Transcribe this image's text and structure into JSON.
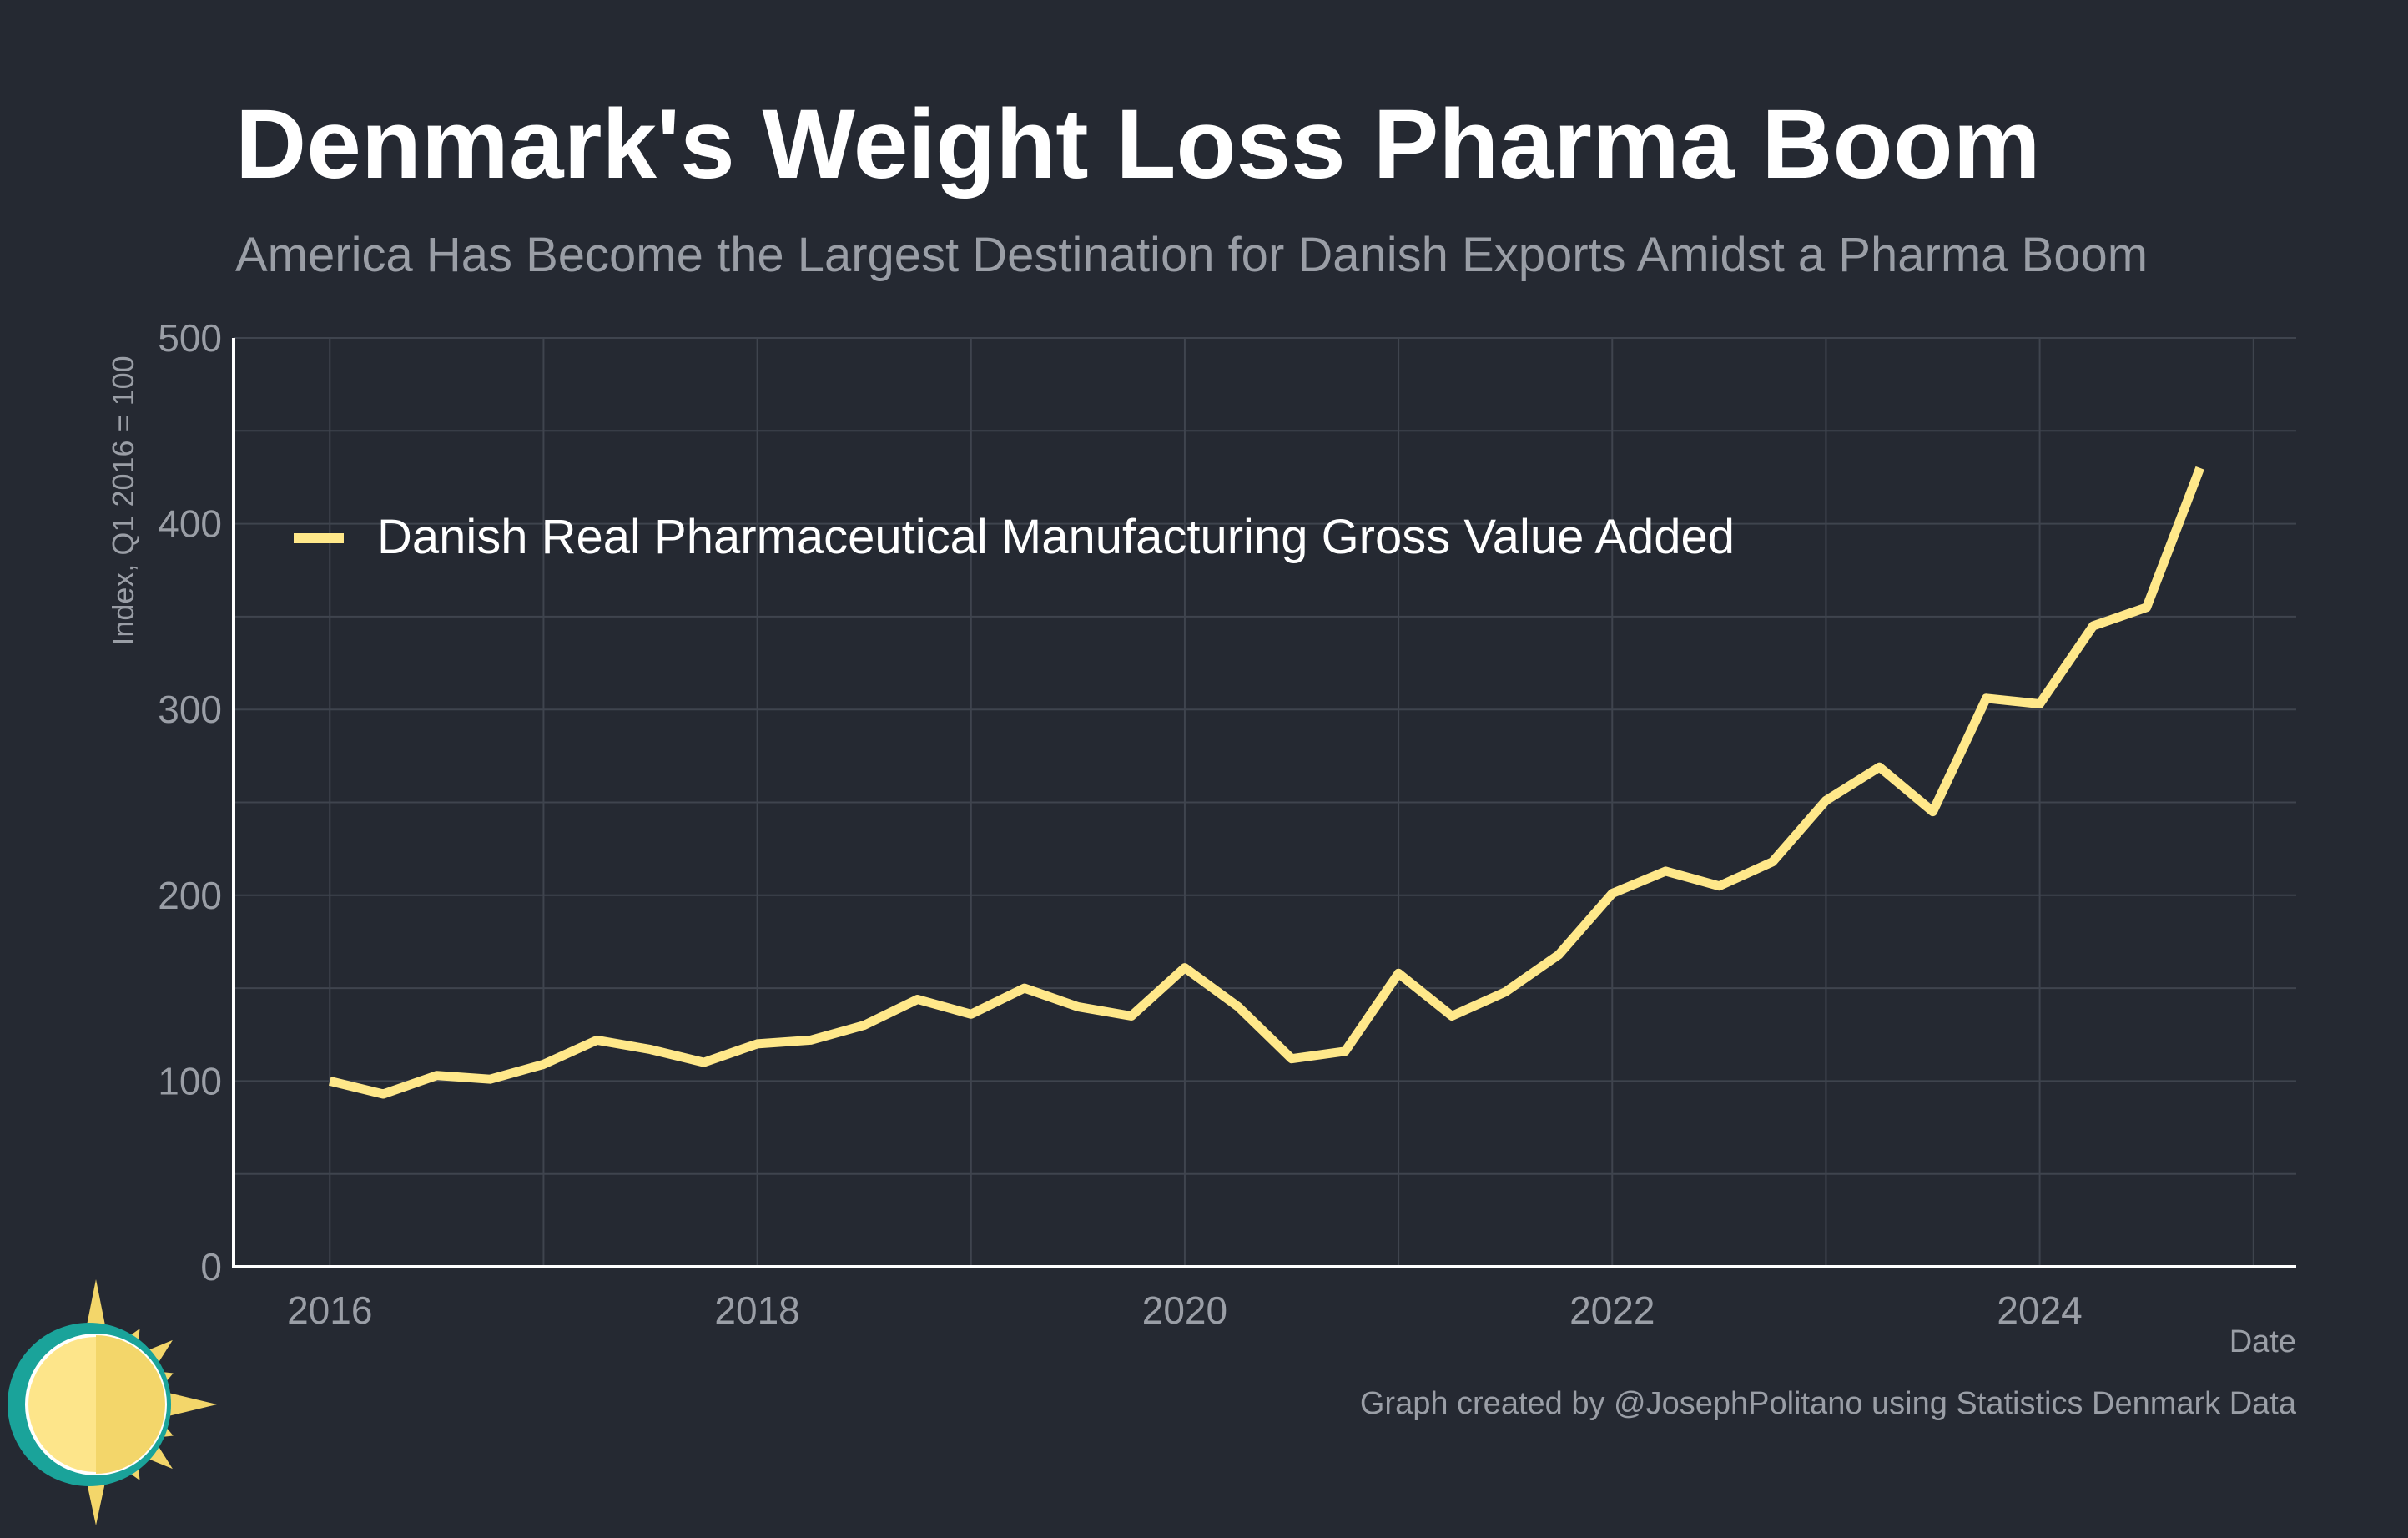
{
  "title": "Denmark's Weight Loss Pharma Boom",
  "subtitle": "America Has Become the Largest Destination for Danish Exports Amidst a Pharma Boom",
  "caption": "Graph created by @JosephPolitano using Statistics Denmark Data",
  "colors": {
    "background": "#252932",
    "line": "#ffe88a",
    "grid": "#3f444e",
    "axis": "#ffffff",
    "tick_text": "#9a9ea6"
  },
  "chart_data": {
    "type": "line",
    "ylabel": "Index, Q1 2016 = 100",
    "xlabel": "Date",
    "ylim": [
      0,
      500
    ],
    "xlim": [
      2015.55,
      2025.2
    ],
    "y_ticks": [
      0,
      100,
      200,
      300,
      400,
      500
    ],
    "x_ticks": [
      2016,
      2018,
      2020,
      2022,
      2024
    ],
    "grid": true,
    "legend_position": "top-left",
    "series": [
      {
        "name": "Danish Real Pharmaceutical Manufacturing Gross Value Added",
        "x": [
          2016.0,
          2016.25,
          2016.5,
          2016.75,
          2017.0,
          2017.25,
          2017.5,
          2017.75,
          2018.0,
          2018.25,
          2018.5,
          2018.75,
          2019.0,
          2019.25,
          2019.5,
          2019.75,
          2020.0,
          2020.25,
          2020.5,
          2020.75,
          2021.0,
          2021.25,
          2021.5,
          2021.75,
          2022.0,
          2022.25,
          2022.5,
          2022.75,
          2023.0,
          2023.25,
          2023.5,
          2023.75,
          2024.0,
          2024.25,
          2024.5,
          2024.75
        ],
        "y": [
          100,
          93,
          103,
          101,
          109,
          122,
          117,
          110,
          120,
          122,
          130,
          144,
          136,
          150,
          140,
          135,
          161,
          140,
          112,
          116,
          158,
          135,
          148,
          168,
          201,
          213,
          205,
          218,
          251,
          269,
          245,
          306,
          303,
          345,
          355,
          430
        ]
      }
    ]
  }
}
